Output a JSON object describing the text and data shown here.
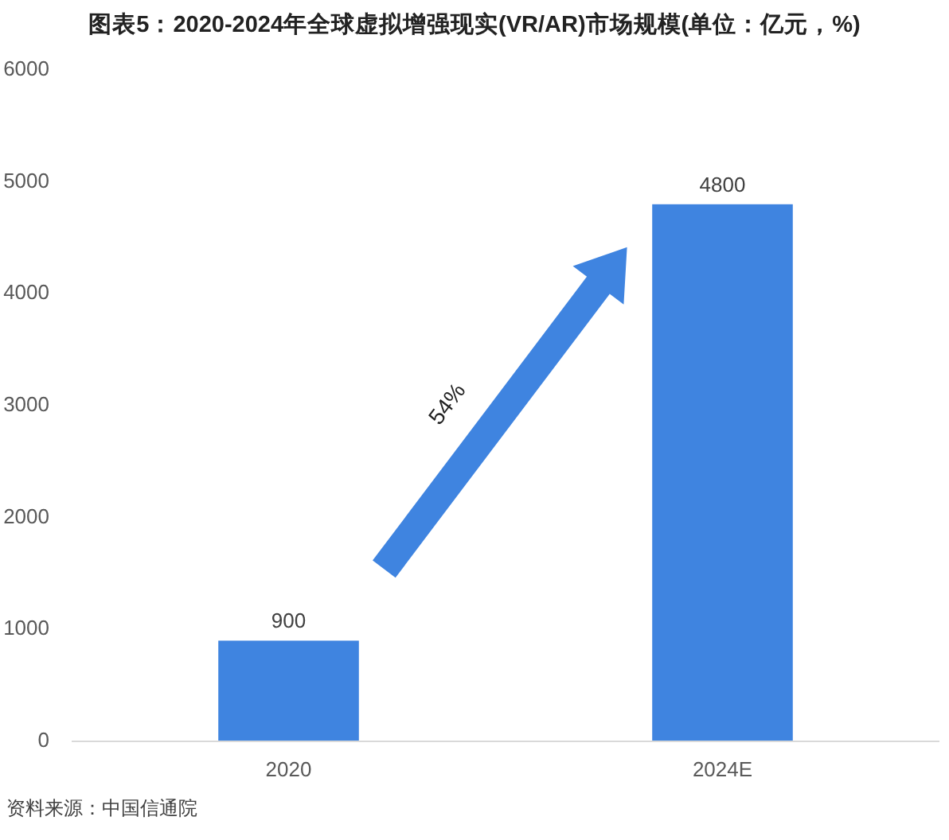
{
  "chart_data": {
    "type": "bar",
    "title": "图表5：2020-2024年全球虚拟增强现实(VR/AR)市场规模(单位：亿元，%)",
    "categories": [
      "2020",
      "2024E"
    ],
    "values": [
      900,
      4800
    ],
    "color": "#3f84e0",
    "ylim": [
      0,
      6000
    ],
    "yticks": [
      0,
      1000,
      2000,
      3000,
      4000,
      5000,
      6000
    ],
    "data_labels": true,
    "annotations": [
      "54%",
      "资料来源：中国信通院"
    ]
  }
}
